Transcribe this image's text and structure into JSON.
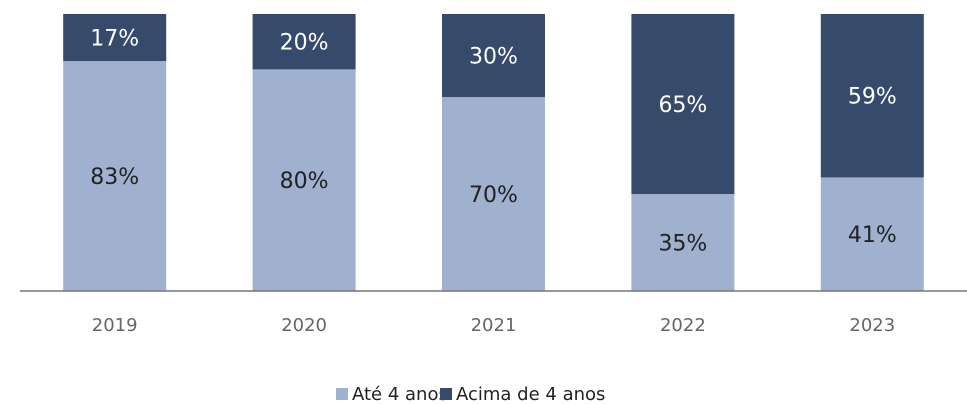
{
  "chart_data": {
    "type": "stacked_bar",
    "categories": [
      "2019",
      "2020",
      "2021",
      "2022",
      "2023"
    ],
    "series": [
      {
        "name": "Até 4 anos",
        "color": "#9fb1cf",
        "values": [
          83,
          80,
          70,
          35,
          41
        ],
        "value_labels": [
          "83%",
          "80%",
          "70%",
          "35%",
          "41%"
        ]
      },
      {
        "name": "Acima de 4 anos",
        "color": "#364b6b",
        "values": [
          17,
          20,
          30,
          65,
          59
        ],
        "value_labels": [
          "17%",
          "20%",
          "30%",
          "65%",
          "59%"
        ]
      }
    ]
  }
}
